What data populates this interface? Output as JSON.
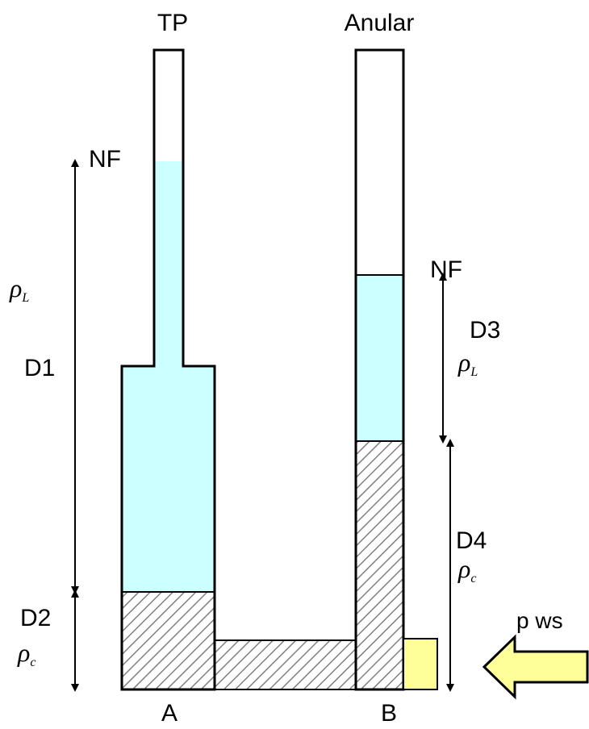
{
  "labels": {
    "tp": "TP",
    "anular": "Anular",
    "nf_left": "NF",
    "nf_right": "NF",
    "d1": "D1",
    "d2": "D2",
    "d3": "D3",
    "d4": "D4",
    "rho_L_left": "ρ",
    "rho_L_left_sub": "L",
    "rho_c_left": "ρ",
    "rho_c_left_sub": "c",
    "rho_L_right": "ρ",
    "rho_L_right_sub": "L",
    "rho_c_right": "ρ",
    "rho_c_right_sub": "c",
    "pws": "p ws",
    "a": "A",
    "b": "B"
  },
  "colors": {
    "light_fluid": "#ccffff",
    "hatch_stroke": "#808080",
    "pressure_box": "#ffff99",
    "arrow_fill": "#ffff99",
    "outline": "#000000"
  }
}
